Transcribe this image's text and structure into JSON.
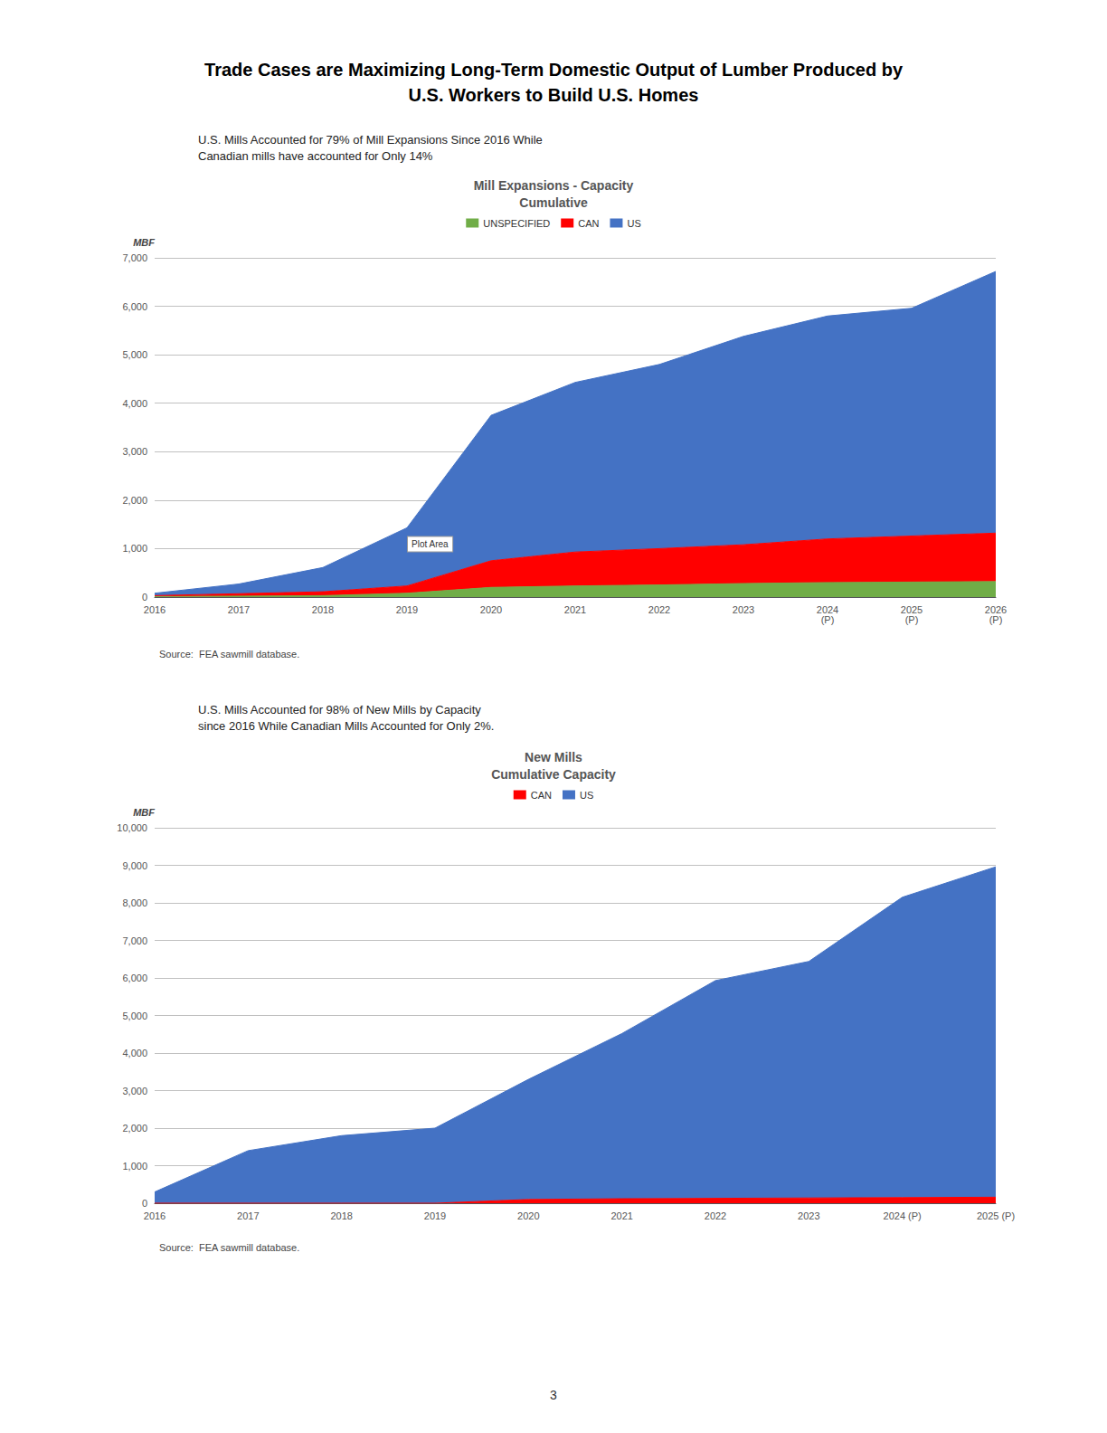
{
  "title": "Trade Cases are Maximizing Long-Term Domestic Output of Lumber Produced by\nU.S. Workers to Build U.S. Homes",
  "annotations": [
    "3"
  ],
  "chart_data": [
    {
      "type": "area",
      "stacked": true,
      "title": "Mill Expansions - Capacity\nCumulative",
      "subtitle": "U.S. Mills Accounted for 79% of Mill Expansions Since 2016 While\nCanadian mills have accounted for Only 14%",
      "y_label": "MBF",
      "annotations": [
        "Plot Area"
      ],
      "source": "Source:  FEA sawmill database.",
      "categories": [
        "2016",
        "2017",
        "2018",
        "2019",
        "2020",
        "2021",
        "2022",
        "2023",
        "2024\n(P)",
        "2025\n(P)",
        "2026\n(P)"
      ],
      "series": [
        {
          "name": "UNSPECIFIED",
          "color": "#70ad47",
          "values": [
            10,
            20,
            30,
            80,
            200,
            230,
            250,
            280,
            300,
            310,
            320
          ]
        },
        {
          "name": "CAN",
          "color": "#ff0000",
          "values": [
            20,
            50,
            80,
            150,
            550,
            700,
            750,
            800,
            900,
            950,
            1000
          ]
        },
        {
          "name": "US",
          "color": "#4472c4",
          "values": [
            50,
            200,
            500,
            1200,
            3000,
            3500,
            3800,
            4300,
            4600,
            4700,
            5400
          ]
        }
      ],
      "ylim": [
        0,
        7000
      ],
      "yticks": [
        0,
        {
          "value": 1000,
          "label": "1,000"
        },
        {
          "value": 2000,
          "label": "2,000"
        },
        {
          "value": 3000,
          "label": "3,000"
        },
        {
          "value": 4000,
          "label": "4,000"
        },
        {
          "value": 5000,
          "label": "5,000"
        },
        {
          "value": 6000,
          "label": "6,000"
        },
        {
          "value": 7000,
          "label": "7,000"
        }
      ],
      "grid": true,
      "legend": "top"
    },
    {
      "type": "area",
      "stacked": true,
      "title": "New Mills\nCumulative Capacity",
      "subtitle": "U.S. Mills Accounted for 98% of New Mills by Capacity\nsince 2016 While Canadian Mills Accounted for Only 2%.",
      "y_label": "MBF",
      "source": "Source:  FEA sawmill database.",
      "categories": [
        "2016",
        "2017",
        "2018",
        "2019",
        "2020",
        "2021",
        "2022",
        "2023",
        "2024 (P)",
        "2025 (P)"
      ],
      "series": [
        {
          "name": "CAN",
          "color": "#ff0000",
          "values": [
            0,
            0,
            0,
            0,
            100,
            120,
            130,
            140,
            150,
            160
          ]
        },
        {
          "name": "US",
          "color": "#4472c4",
          "values": [
            300,
            1400,
            1800,
            2000,
            3200,
            4400,
            5800,
            6300,
            8000,
            8800
          ]
        }
      ],
      "ylim": [
        0,
        10000
      ],
      "yticks": [
        0,
        {
          "value": 1000,
          "label": "1,000"
        },
        {
          "value": 2000,
          "label": "2,000"
        },
        {
          "value": 3000,
          "label": "3,000"
        },
        {
          "value": 4000,
          "label": "4,000"
        },
        {
          "value": 5000,
          "label": "5,000"
        },
        {
          "value": 6000,
          "label": "6,000"
        },
        {
          "value": 7000,
          "label": "7,000"
        },
        {
          "value": 8000,
          "label": "8,000"
        },
        {
          "value": 9000,
          "label": "9,000"
        },
        {
          "value": 10000,
          "label": "10,000"
        }
      ],
      "grid": true,
      "legend": "top"
    }
  ]
}
